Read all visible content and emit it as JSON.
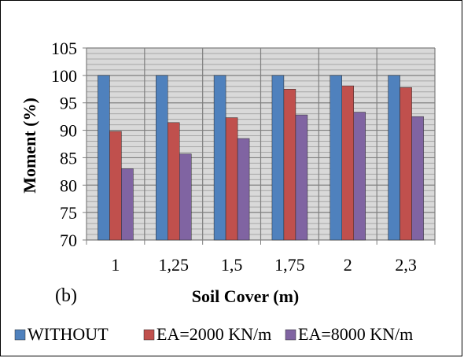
{
  "chart_data": {
    "type": "bar",
    "panel_label": "(b)",
    "xlabel": "Soil Cover (m)",
    "ylabel": "Moment (%)",
    "categories": [
      "1",
      "1,25",
      "1,5",
      "1,75",
      "2",
      "2,3"
    ],
    "ylim": [
      70,
      105
    ],
    "yticks": [
      "70",
      "75",
      "80",
      "85",
      "90",
      "95",
      "100",
      "105"
    ],
    "grid": true,
    "legend_position": "bottom",
    "series": [
      {
        "name": "WITHOUT",
        "color": "#4f81bd",
        "values": [
          100,
          100,
          100,
          100,
          100,
          100
        ]
      },
      {
        "name": "EA=2000 KN/m",
        "color": "#c0504d",
        "values": [
          89.8,
          91.4,
          92.3,
          97.5,
          98.1,
          97.8
        ]
      },
      {
        "name": "EA=8000 KN/m",
        "color": "#8064a2",
        "values": [
          83,
          85.7,
          88.5,
          92.8,
          93.3,
          92.5
        ]
      }
    ]
  }
}
